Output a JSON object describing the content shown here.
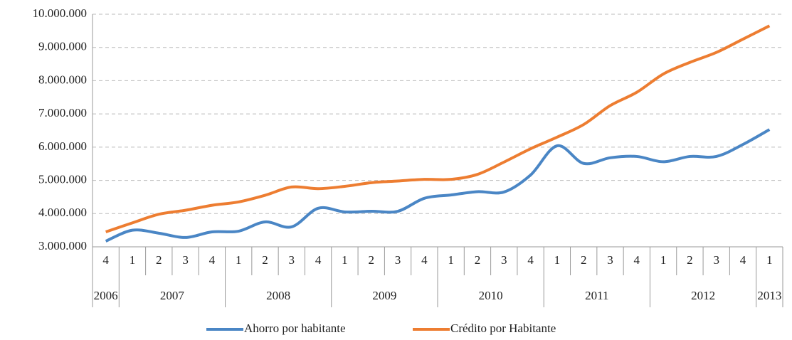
{
  "chart_data": {
    "type": "line",
    "categories": [
      {
        "quarter": "4",
        "year": "2006"
      },
      {
        "quarter": "1",
        "year": "2007"
      },
      {
        "quarter": "2",
        "year": "2007"
      },
      {
        "quarter": "3",
        "year": "2007"
      },
      {
        "quarter": "4",
        "year": "2007"
      },
      {
        "quarter": "1",
        "year": "2008"
      },
      {
        "quarter": "2",
        "year": "2008"
      },
      {
        "quarter": "3",
        "year": "2008"
      },
      {
        "quarter": "4",
        "year": "2008"
      },
      {
        "quarter": "1",
        "year": "2009"
      },
      {
        "quarter": "2",
        "year": "2009"
      },
      {
        "quarter": "3",
        "year": "2009"
      },
      {
        "quarter": "4",
        "year": "2009"
      },
      {
        "quarter": "1",
        "year": "2010"
      },
      {
        "quarter": "2",
        "year": "2010"
      },
      {
        "quarter": "3",
        "year": "2010"
      },
      {
        "quarter": "4",
        "year": "2010"
      },
      {
        "quarter": "1",
        "year": "2011"
      },
      {
        "quarter": "2",
        "year": "2011"
      },
      {
        "quarter": "3",
        "year": "2011"
      },
      {
        "quarter": "4",
        "year": "2011"
      },
      {
        "quarter": "1",
        "year": "2012"
      },
      {
        "quarter": "2",
        "year": "2012"
      },
      {
        "quarter": "3",
        "year": "2012"
      },
      {
        "quarter": "4",
        "year": "2012"
      },
      {
        "quarter": "1",
        "year": "2013"
      }
    ],
    "series": [
      {
        "name": "Ahorro por habitante",
        "color": "#4a86c5",
        "values": [
          3170000,
          3500000,
          3410000,
          3280000,
          3450000,
          3470000,
          3750000,
          3600000,
          4160000,
          4050000,
          4070000,
          4070000,
          4460000,
          4560000,
          4660000,
          4650000,
          5160000,
          6040000,
          5510000,
          5680000,
          5720000,
          5560000,
          5720000,
          5720000,
          6080000,
          6530000
        ]
      },
      {
        "name": "Crédito por Habitante",
        "color": "#ed7d31",
        "values": [
          3450000,
          3720000,
          3980000,
          4100000,
          4250000,
          4350000,
          4550000,
          4800000,
          4750000,
          4820000,
          4930000,
          4980000,
          5030000,
          5030000,
          5180000,
          5550000,
          5950000,
          6300000,
          6680000,
          7250000,
          7650000,
          8200000,
          8550000,
          8850000,
          9250000,
          9650000
        ]
      }
    ],
    "ylim": [
      3000000,
      10000000
    ],
    "yticks": [
      {
        "value": 3000000,
        "label": "3.000.000"
      },
      {
        "value": 4000000,
        "label": "4.000.000"
      },
      {
        "value": 5000000,
        "label": "5.000.000"
      },
      {
        "value": 6000000,
        "label": "6.000.000"
      },
      {
        "value": 7000000,
        "label": "7.000.000"
      },
      {
        "value": 8000000,
        "label": "8.000.000"
      },
      {
        "value": 9000000,
        "label": "9.000.000"
      },
      {
        "value": 10000000,
        "label": "10.000.000"
      }
    ],
    "grid": true,
    "legend": "bottom"
  }
}
